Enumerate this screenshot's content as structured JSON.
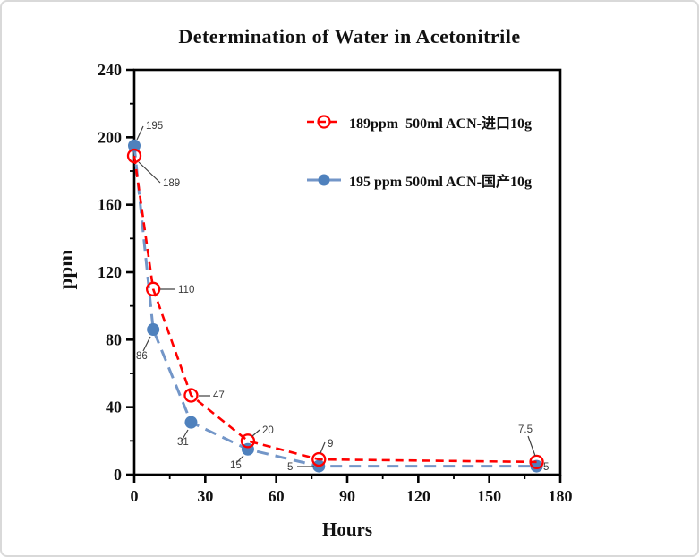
{
  "page": {
    "title": "Determination of Water in Acetonitrile"
  },
  "axes": {
    "x_label": "Hours",
    "y_label": "ppm",
    "x_ticks": [
      0,
      30,
      60,
      90,
      120,
      150,
      180
    ],
    "x_minor_ticks": [
      15,
      45,
      75,
      105,
      135,
      165
    ],
    "y_ticks": [
      0,
      40,
      80,
      120,
      160,
      200,
      240
    ],
    "y_minor_ticks": [
      20,
      60,
      100,
      140,
      180,
      220
    ]
  },
  "legend": [
    {
      "label": "189ppm  500ml ACN-进口10g",
      "color": "#ff0000",
      "marker": "open-circle"
    },
    {
      "label": "195 ppm 500ml ACN-国产10g",
      "color": "#4f81bd",
      "marker": "filled-circle"
    }
  ],
  "colors": {
    "red_series": "#ff0000",
    "blue_series_line": "#7396c8",
    "blue_series_marker": "#4f81bd",
    "axis": "#000000",
    "point_label": "#3a3a3a"
  },
  "chart_data": {
    "type": "line",
    "title": "Determination of Water in Acetonitrile",
    "xlabel": "Hours",
    "ylabel": "ppm",
    "xlim": [
      0,
      180
    ],
    "ylim": [
      0,
      240
    ],
    "grid": false,
    "legend_position": "upper-right-inside, no border",
    "x": [
      0,
      8,
      24,
      48,
      78,
      170
    ],
    "series": [
      {
        "name": "189ppm  500ml ACN-进口10g",
        "color": "#ff0000",
        "marker": "open-circle",
        "linestyle": "dashed",
        "values": [
          189,
          110,
          47,
          20,
          9,
          7.5
        ],
        "point_labels": [
          "189",
          "110",
          "47",
          "20",
          "9",
          "7.5"
        ]
      },
      {
        "name": "195 ppm 500ml ACN-国产10g",
        "color": "#4f81bd",
        "marker": "filled-circle",
        "linestyle": "dashed",
        "values": [
          195,
          86,
          31,
          15,
          5,
          5
        ],
        "point_labels": [
          "195",
          "86",
          "31",
          "15",
          "5",
          "5"
        ]
      }
    ]
  }
}
